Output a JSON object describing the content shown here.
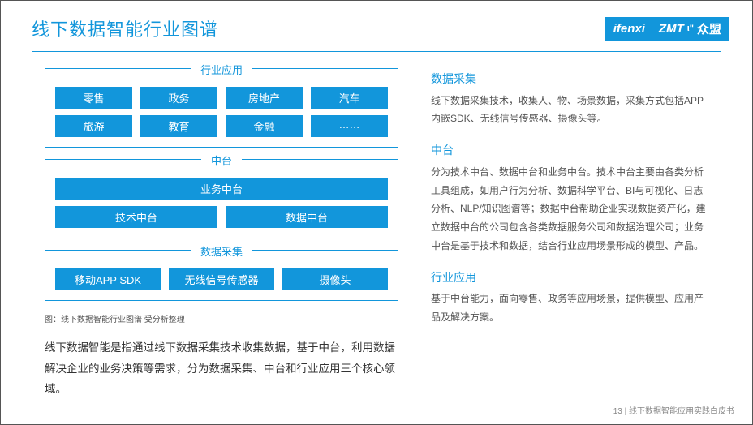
{
  "header": {
    "title": "线下数据智能行业图谱",
    "logo1": "ifenxi",
    "logo2": "ZMT",
    "logo3": "众盟"
  },
  "diagram": {
    "group1": {
      "label": "行业应用",
      "row1": [
        "零售",
        "政务",
        "房地产",
        "汽车"
      ],
      "row2": [
        "旅游",
        "教育",
        "金融",
        "……"
      ]
    },
    "group2": {
      "label": "中台",
      "row1": [
        "业务中台"
      ],
      "row2": [
        "技术中台",
        "数据中台"
      ]
    },
    "group3": {
      "label": "数据采集",
      "row1": [
        "移动APP SDK",
        "无线信号传感器",
        "摄像头"
      ]
    },
    "caption": "图：线下数据智能行业图谱  受分析整理",
    "desc": "线下数据智能是指通过线下数据采集技术收集数据，基于中台，利用数据解决企业的业务决策等需求，分为数据采集、中台和行业应用三个核心领域。"
  },
  "sections": {
    "s1": {
      "title": "数据采集",
      "body": "线下数据采集技术，收集人、物、场景数据，采集方式包括APP内嵌SDK、无线信号传感器、摄像头等。"
    },
    "s2": {
      "title": "中台",
      "body": "分为技术中台、数据中台和业务中台。技术中台主要由各类分析工具组成，如用户行为分析、数据科学平台、BI与可视化、日志分析、NLP/知识图谱等；数据中台帮助企业实现数据资产化，建立数据中台的公司包含各类数据服务公司和数据治理公司；业务中台是基于技术和数据，结合行业应用场景形成的模型、产品。"
    },
    "s3": {
      "title": "行业应用",
      "body": "基于中台能力，面向零售、政务等应用场景，提供模型、应用产品及解决方案。"
    }
  },
  "footer": "13 | 线下数据智能应用实践白皮书",
  "colors": {
    "accent": "#1296db",
    "text": "#333333",
    "muted": "#888888",
    "border": "#555555"
  }
}
